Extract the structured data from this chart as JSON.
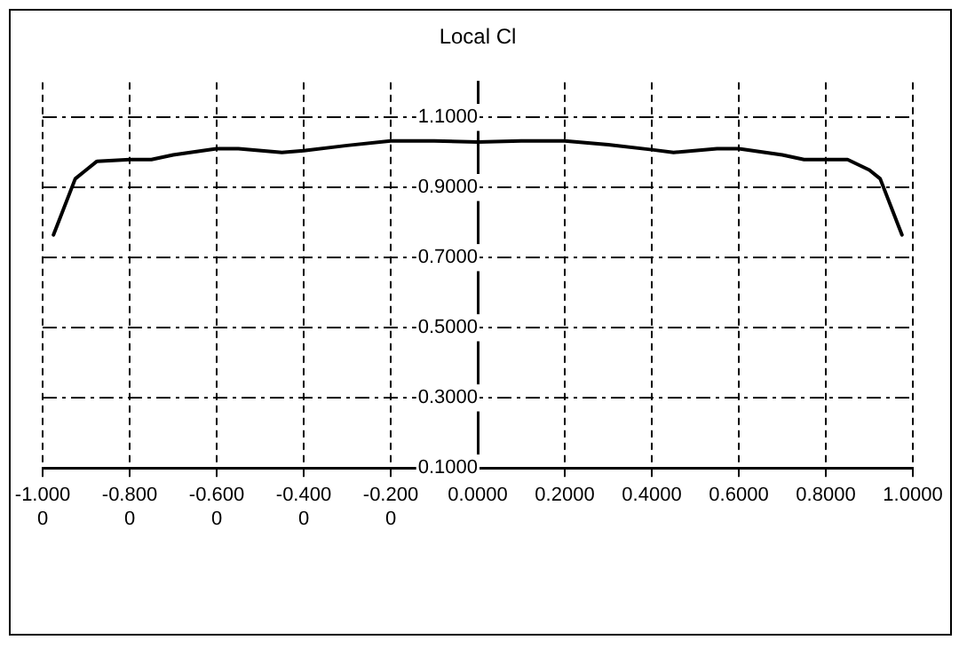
{
  "chart_data": {
    "type": "line",
    "title": "Local Cl",
    "x": [
      -0.975,
      -0.925,
      -0.9,
      -0.875,
      -0.8,
      -0.75,
      -0.7,
      -0.6,
      -0.55,
      -0.45,
      -0.4,
      -0.3,
      -0.2,
      -0.1,
      0,
      0.1,
      0.2,
      0.3,
      0.4,
      0.45,
      0.55,
      0.6,
      0.7,
      0.75,
      0.85,
      0.9,
      0.925,
      0.975
    ],
    "series": [
      {
        "color": "#000000",
        "values": [
          0.765,
          0.925,
          0.95,
          0.975,
          0.98,
          0.98,
          0.993,
          1.011,
          1.011,
          1.0,
          1.005,
          1.02,
          1.033,
          1.033,
          1.03,
          1.033,
          1.033,
          1.022,
          1.008,
          1.0,
          1.011,
          1.011,
          0.993,
          0.98,
          0.98,
          0.95,
          0.925,
          0.765
        ]
      }
    ],
    "xlim": [
      -1.0,
      1.0
    ],
    "xticks": [
      {
        "value": -1.0,
        "label": "-1.0000"
      },
      {
        "value": -0.8,
        "label": "-0.8000"
      },
      {
        "value": -0.6,
        "label": "-0.6000"
      },
      {
        "value": -0.4,
        "label": "-0.4000"
      },
      {
        "value": -0.2,
        "label": "-0.2000"
      },
      {
        "value": 0,
        "label": "0.0000"
      },
      {
        "value": 0.2,
        "label": "0.2000"
      },
      {
        "value": 0.4,
        "label": "0.4000"
      },
      {
        "value": 0.6,
        "label": "0.6000"
      },
      {
        "value": 0.8,
        "label": "0.8000"
      },
      {
        "value": 1.0,
        "label": "1.0000"
      }
    ],
    "ylim": [
      0.1,
      1.2
    ],
    "yticks": [
      {
        "value": 0.1,
        "label": "0.1000"
      },
      {
        "value": 0.3,
        "label": "0.3000"
      },
      {
        "value": 0.5,
        "label": "0.5000"
      },
      {
        "value": 0.7,
        "label": "0.7000"
      },
      {
        "value": 0.9,
        "label": "0.9000"
      },
      {
        "value": 1.1,
        "label": "1.1000"
      }
    ],
    "grid": true,
    "legend": false,
    "marker": "none",
    "line_style": "solid"
  }
}
